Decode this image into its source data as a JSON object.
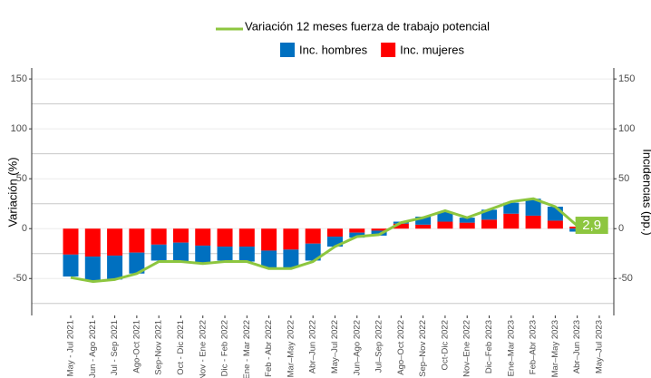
{
  "chart_data": {
    "type": "bar_line",
    "y_label": "Variación (%)",
    "y2_label": "Incidencias (pp.)",
    "categories": [
      "May - Jul 2021",
      "Jun - Ago 2021",
      "Jul - Sep 2021",
      "Ago-Oct 2021",
      "Sep-Nov 2021",
      "Oct - Dic 2021",
      "Nov - Ene 2022",
      "Dic - Feb 2022",
      "Ene - Mar 2022",
      "Feb - Abr 2022",
      "Mar–May 2022",
      "Abr–Jun 2022",
      "May–Jul 2022",
      "Jun–Ago 2022",
      "Jul–Sep 2022",
      "Ago–Oct 2022",
      "Sep–Nov 2022",
      "Oct-Dic 2022",
      "Nov–Ene 2022",
      "Dic–Feb 2023",
      "Ene–Mar 2023",
      "Feb–Abr 2023",
      "Mar–May 2023",
      "Abr–Jun 2023",
      "May–Jul 2023"
    ],
    "series": [
      {
        "name": "Variación 12 meses fuerza de trabajo potencial",
        "kind": "line",
        "color": "#8dc63f",
        "values": [
          -49,
          -53,
          -51,
          -45,
          -33,
          -33,
          -35,
          -33,
          -33,
          -40,
          -40,
          -33,
          -18,
          -8,
          -6,
          6,
          11,
          18,
          11,
          19,
          27,
          30,
          22,
          2.9,
          null
        ],
        "value_labels": [
          null,
          null,
          null,
          null,
          null,
          null,
          null,
          null,
          null,
          null,
          null,
          null,
          null,
          null,
          null,
          null,
          null,
          null,
          null,
          null,
          null,
          null,
          null,
          "2,9",
          null
        ]
      },
      {
        "name": "Inc. hombres",
        "kind": "bar",
        "axis": "y2",
        "color": "#0070c0",
        "values": [
          -22,
          -24,
          -24,
          -21,
          -16,
          -19,
          -17,
          -14,
          -15,
          -17,
          -18,
          -17,
          -10,
          -5,
          -5,
          2,
          8,
          10,
          5,
          10,
          11,
          17,
          14,
          -3,
          null
        ]
      },
      {
        "name": "Inc. mujeres",
        "kind": "bar",
        "axis": "y2",
        "color": "#ff0000",
        "values": [
          -26,
          -28,
          -27,
          -24,
          -16,
          -14,
          -17,
          -18,
          -18,
          -22,
          -21,
          -15,
          -8,
          -4,
          -2,
          5,
          4,
          7,
          6,
          9,
          15,
          13,
          8,
          2,
          null
        ]
      }
    ],
    "ylim": [
      -87,
      161
    ],
    "yticks": [
      -50,
      0,
      50,
      100,
      150
    ],
    "y2lim": [
      -87,
      161
    ],
    "y2ticks": [
      -50,
      0,
      50,
      100,
      150
    ],
    "minor_grid": [
      -75,
      -25,
      25,
      75,
      125
    ],
    "grid": true
  }
}
